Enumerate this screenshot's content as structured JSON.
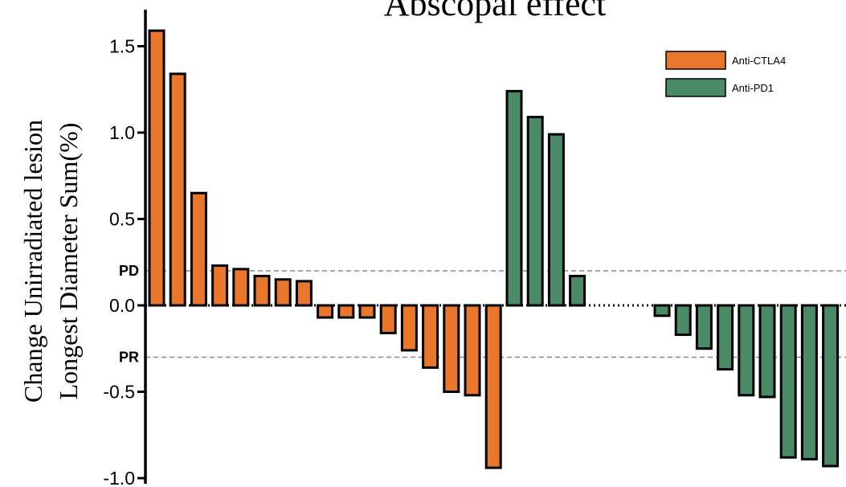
{
  "chart_data": {
    "type": "bar",
    "title": "Abscopal effect",
    "ylabel_line1": "Change Unirradiated lesion",
    "ylabel_line2": "Longest Diameter Sum(%)",
    "xlabel": "",
    "ylim": [
      -1.0,
      1.6
    ],
    "yticks": [
      "1.5",
      "1.0",
      "0.5",
      "0.0",
      "-0.5",
      "-1.0"
    ],
    "ytick_values": [
      1.5,
      1.0,
      0.5,
      0.0,
      -0.5,
      -1.0
    ],
    "reference_lines": [
      {
        "label": "PD",
        "value": 0.2
      },
      {
        "label": "PR",
        "value": -0.3
      }
    ],
    "legend_position": "top-right",
    "series": [
      {
        "name": "Anti-CTLA4",
        "color": "#E8762B",
        "values": [
          1.59,
          1.34,
          0.65,
          0.23,
          0.21,
          0.17,
          0.15,
          0.14,
          -0.07,
          -0.07,
          -0.07,
          -0.16,
          -0.26,
          -0.36,
          -0.5,
          -0.52,
          -0.94
        ]
      },
      {
        "name": "Anti-PD1",
        "color": "#4A8A66",
        "values": [
          1.24,
          1.09,
          0.99,
          0.17,
          -0.06,
          -0.17,
          -0.25,
          -0.37,
          -0.52,
          -0.53,
          -0.88,
          -0.89,
          -0.93
        ]
      }
    ]
  }
}
